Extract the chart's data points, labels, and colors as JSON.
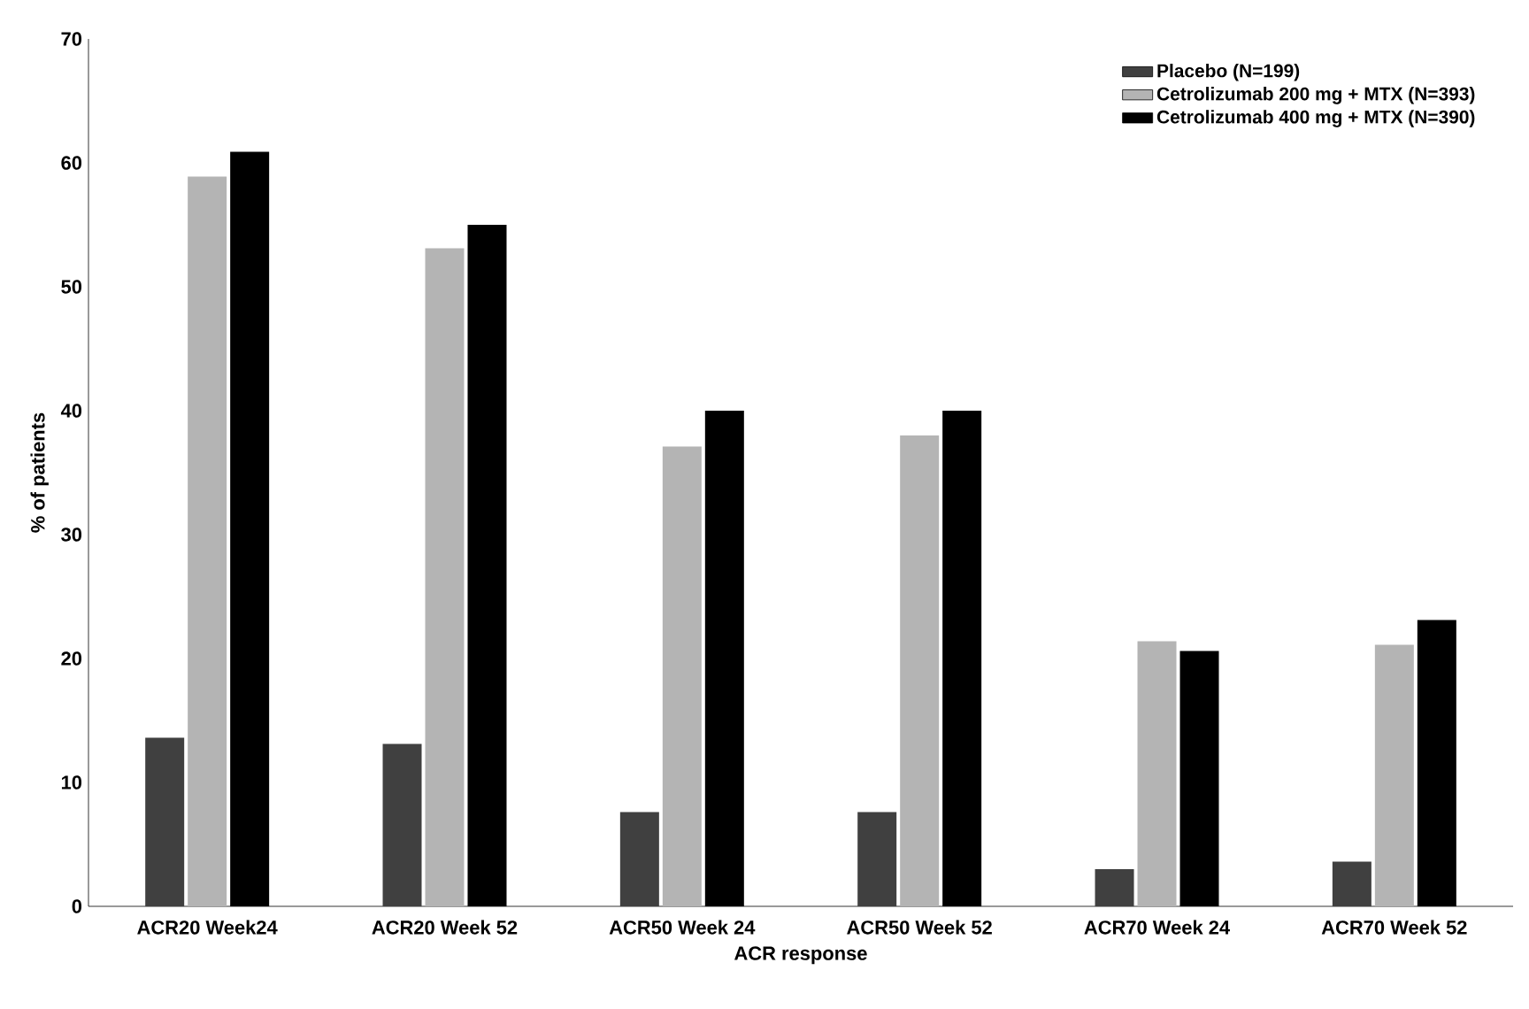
{
  "chart_data": {
    "type": "bar",
    "xlabel": "ACR response",
    "ylabel": "% of patients",
    "categories": [
      "ACR20 Week24",
      "ACR20 Week 52",
      "ACR50 Week 24",
      "ACR50 Week 52",
      "ACR70 Week 24",
      "ACR70 Week 52"
    ],
    "series": [
      {
        "name": "Placebo (N=199)",
        "color": "#404040",
        "values": [
          13.6,
          13.1,
          7.6,
          7.6,
          3.0,
          3.6
        ]
      },
      {
        "name": "Cetrolizumab 200 mg + MTX (N=393)",
        "color": "#b4b4b4",
        "values": [
          58.9,
          53.1,
          37.1,
          38.0,
          21.4,
          21.1
        ]
      },
      {
        "name": "Cetrolizumab 400 mg + MTX (N=390)",
        "color": "#000000",
        "values": [
          60.9,
          55.0,
          40.0,
          40.0,
          20.6,
          23.1
        ]
      }
    ],
    "ylim": [
      0,
      70
    ],
    "yticks": [
      0,
      10,
      20,
      30,
      40,
      50,
      60,
      70
    ],
    "legend": "top right",
    "grid": false
  }
}
